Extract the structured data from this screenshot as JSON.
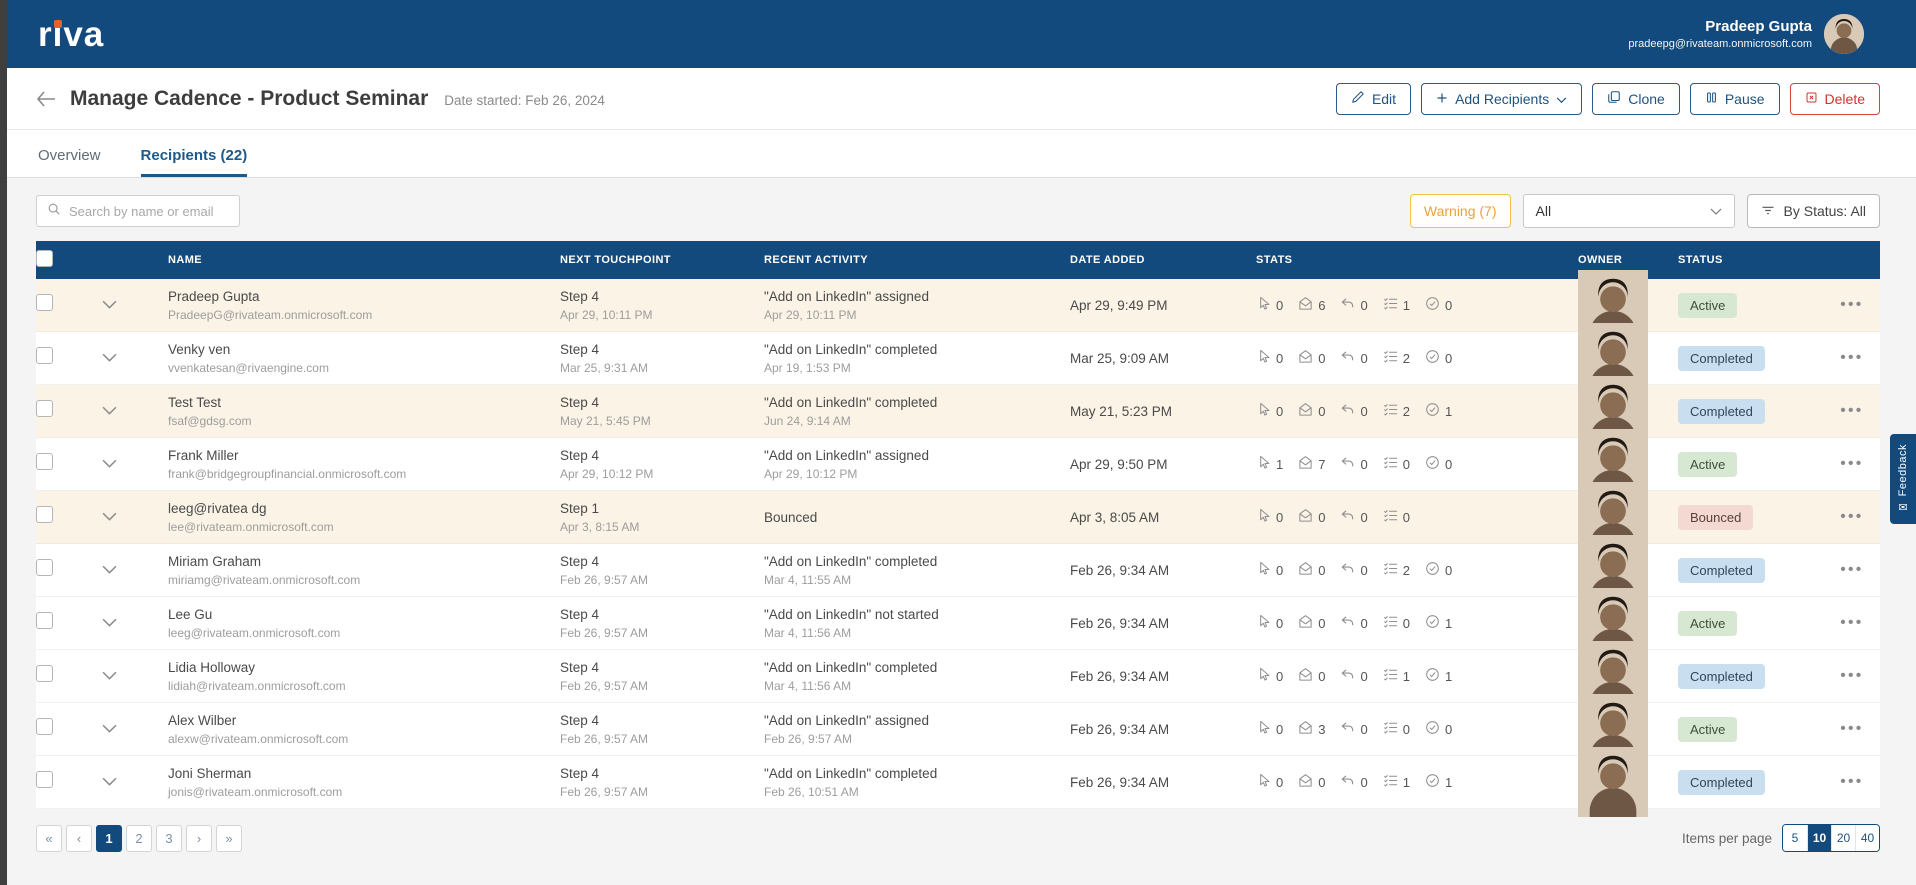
{
  "brand": {
    "logo_text": "riva"
  },
  "navbar": {
    "user_name": "Pradeep Gupta",
    "user_email": "pradeepg@rivateam.onmicrosoft.com"
  },
  "page_header": {
    "title": "Manage Cadence - Product Seminar",
    "date_started": "Date started: Feb 26, 2024",
    "buttons": {
      "edit": "Edit",
      "add_recipients": "Add Recipients",
      "clone": "Clone",
      "pause": "Pause",
      "delete": "Delete"
    }
  },
  "tabs": {
    "overview": "Overview",
    "recipients": "Recipients (22)"
  },
  "toolbar": {
    "search_placeholder": "Search by name or email",
    "warning_badge": "Warning (7)",
    "filter_dropdown_value": "All",
    "status_filter_label": "By Status: All"
  },
  "table": {
    "headers": {
      "name": "NAME",
      "next_touchpoint": "NEXT TOUCHPOINT",
      "recent_activity": "RECENT ACTIVITY",
      "date_added": "DATE ADDED",
      "stats": "STATS",
      "owner": "OWNER",
      "status": "STATUS"
    },
    "rows": [
      {
        "name": "Pradeep Gupta",
        "email": "PradeepG@rivateam.onmicrosoft.com",
        "step": "Step 4",
        "step_time": "Apr 29, 10:11 PM",
        "activity": "\"Add on LinkedIn\" assigned",
        "activity_time": "Apr 29, 10:11 PM",
        "date_added": "Apr 29, 9:49 PM",
        "stats": {
          "clicks": "0",
          "opens": "6",
          "replies": "0",
          "tasks": "1",
          "done": "0"
        },
        "status": "Active",
        "highlighted": true,
        "show_done": true
      },
      {
        "name": "Venky ven",
        "email": "vvenkatesan@rivaengine.com",
        "step": "Step 4",
        "step_time": "Mar 25, 9:31 AM",
        "activity": "\"Add on LinkedIn\" completed",
        "activity_time": "Apr 19, 1:53 PM",
        "date_added": "Mar 25, 9:09 AM",
        "stats": {
          "clicks": "0",
          "opens": "0",
          "replies": "0",
          "tasks": "2",
          "done": "0"
        },
        "status": "Completed",
        "highlighted": false,
        "show_done": true
      },
      {
        "name": "Test Test",
        "email": "fsaf@gdsg.com",
        "step": "Step 4",
        "step_time": "May 21, 5:45 PM",
        "activity": "\"Add on LinkedIn\" completed",
        "activity_time": "Jun 24, 9:14 AM",
        "date_added": "May 21, 5:23 PM",
        "stats": {
          "clicks": "0",
          "opens": "0",
          "replies": "0",
          "tasks": "2",
          "done": "1"
        },
        "status": "Completed",
        "highlighted": true,
        "show_done": true
      },
      {
        "name": "Frank Miller",
        "email": "frank@bridgegroupfinancial.onmicrosoft.com",
        "step": "Step 4",
        "step_time": "Apr 29, 10:12 PM",
        "activity": "\"Add on LinkedIn\" assigned",
        "activity_time": "Apr 29, 10:12 PM",
        "date_added": "Apr 29, 9:50 PM",
        "stats": {
          "clicks": "1",
          "opens": "7",
          "replies": "0",
          "tasks": "0",
          "done": "0"
        },
        "status": "Active",
        "highlighted": false,
        "show_done": true
      },
      {
        "name": "leeg@rivatea dg",
        "email": "lee@rivateam.onmicrosoft.com",
        "step": "Step 1",
        "step_time": "Apr 3, 8:15 AM",
        "activity": "Bounced",
        "activity_time": "",
        "date_added": "Apr 3, 8:05 AM",
        "stats": {
          "clicks": "0",
          "opens": "0",
          "replies": "0",
          "tasks": "0",
          "done": ""
        },
        "status": "Bounced",
        "highlighted": true,
        "show_done": false
      },
      {
        "name": "Miriam Graham",
        "email": "miriamg@rivateam.onmicrosoft.com",
        "step": "Step 4",
        "step_time": "Feb 26, 9:57 AM",
        "activity": "\"Add on LinkedIn\" completed",
        "activity_time": "Mar 4, 11:55 AM",
        "date_added": "Feb 26, 9:34 AM",
        "stats": {
          "clicks": "0",
          "opens": "0",
          "replies": "0",
          "tasks": "2",
          "done": "0"
        },
        "status": "Completed",
        "highlighted": false,
        "show_done": true
      },
      {
        "name": "Lee Gu",
        "email": "leeg@rivateam.onmicrosoft.com",
        "step": "Step 4",
        "step_time": "Feb 26, 9:57 AM",
        "activity": "\"Add on LinkedIn\" not started",
        "activity_time": "Mar 4, 11:56 AM",
        "date_added": "Feb 26, 9:34 AM",
        "stats": {
          "clicks": "0",
          "opens": "0",
          "replies": "0",
          "tasks": "0",
          "done": "1"
        },
        "status": "Active",
        "highlighted": false,
        "show_done": true
      },
      {
        "name": "Lidia Holloway",
        "email": "lidiah@rivateam.onmicrosoft.com",
        "step": "Step 4",
        "step_time": "Feb 26, 9:57 AM",
        "activity": "\"Add on LinkedIn\" completed",
        "activity_time": "Mar 4, 11:56 AM",
        "date_added": "Feb 26, 9:34 AM",
        "stats": {
          "clicks": "0",
          "opens": "0",
          "replies": "0",
          "tasks": "1",
          "done": "1"
        },
        "status": "Completed",
        "highlighted": false,
        "show_done": true
      },
      {
        "name": "Alex Wilber",
        "email": "alexw@rivateam.onmicrosoft.com",
        "step": "Step 4",
        "step_time": "Feb 26, 9:57 AM",
        "activity": "\"Add on LinkedIn\" assigned",
        "activity_time": "Feb 26, 9:57 AM",
        "date_added": "Feb 26, 9:34 AM",
        "stats": {
          "clicks": "0",
          "opens": "3",
          "replies": "0",
          "tasks": "0",
          "done": "0"
        },
        "status": "Active",
        "highlighted": false,
        "show_done": true
      },
      {
        "name": "Joni Sherman",
        "email": "jonis@rivateam.onmicrosoft.com",
        "step": "Step 4",
        "step_time": "Feb 26, 9:57 AM",
        "activity": "\"Add on LinkedIn\" completed",
        "activity_time": "Feb 26, 10:51 AM",
        "date_added": "Feb 26, 9:34 AM",
        "stats": {
          "clicks": "0",
          "opens": "0",
          "replies": "0",
          "tasks": "1",
          "done": "1"
        },
        "status": "Completed",
        "highlighted": false,
        "show_done": true
      }
    ]
  },
  "pagination": {
    "buttons": [
      "«",
      "‹",
      "1",
      "2",
      "3",
      "›",
      "»"
    ],
    "active": "1"
  },
  "items_per_page": {
    "label": "Items per page",
    "options": [
      "5",
      "10",
      "20",
      "40"
    ],
    "selected": "10"
  },
  "feedback_tab_label": "Feedback",
  "colors": {
    "brand_blue": "#124a7d",
    "logo_dot_orange": "#e0622f",
    "warning_text": "#e8a33d",
    "warning_border": "#f0c24b",
    "row_highlight": "#faf3e6",
    "active_badge_bg": "#d6e8d2",
    "completed_badge_bg": "#c9deee",
    "bounced_badge_bg": "#f4d9d2",
    "delete_red": "#d0342c"
  }
}
